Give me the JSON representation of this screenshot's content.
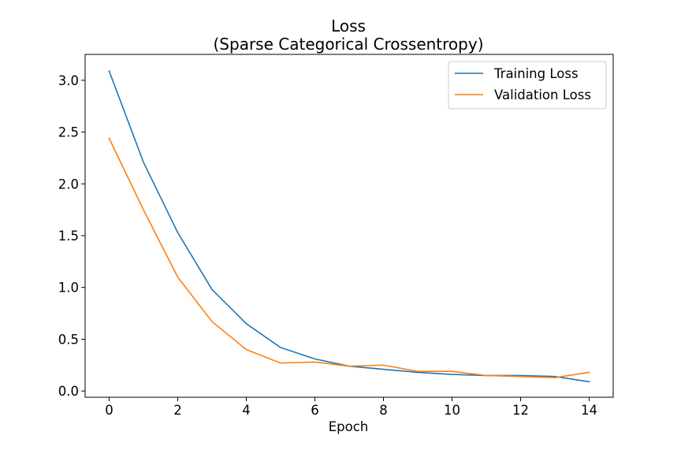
{
  "chart_data": {
    "type": "line",
    "title": [
      "Loss",
      "(Sparse Categorical Crossentropy)"
    ],
    "xlabel": "Epoch",
    "ylabel": "",
    "x": [
      0,
      1,
      2,
      3,
      4,
      5,
      6,
      7,
      8,
      9,
      10,
      11,
      12,
      13,
      14
    ],
    "xlim": [
      -0.7,
      14.7
    ],
    "ylim": [
      -0.06,
      3.25
    ],
    "xticks": [
      0,
      2,
      4,
      6,
      8,
      10,
      12,
      14
    ],
    "xtick_labels": [
      "0",
      "2",
      "4",
      "6",
      "8",
      "10",
      "12",
      "14"
    ],
    "yticks": [
      0.0,
      0.5,
      1.0,
      1.5,
      2.0,
      2.5,
      3.0
    ],
    "ytick_labels": [
      "0.0",
      "0.5",
      "1.0",
      "1.5",
      "2.0",
      "2.5",
      "3.0"
    ],
    "grid": false,
    "legend_position": "top-right",
    "series": [
      {
        "name": "Training Loss",
        "color": "#1f77b4",
        "values": [
          3.09,
          2.21,
          1.53,
          0.98,
          0.65,
          0.42,
          0.31,
          0.24,
          0.21,
          0.18,
          0.16,
          0.15,
          0.15,
          0.14,
          0.09
        ]
      },
      {
        "name": "Validation Loss",
        "color": "#ff7f0e",
        "values": [
          2.44,
          1.75,
          1.1,
          0.67,
          0.4,
          0.27,
          0.28,
          0.24,
          0.25,
          0.19,
          0.19,
          0.15,
          0.14,
          0.13,
          0.18
        ]
      }
    ]
  }
}
